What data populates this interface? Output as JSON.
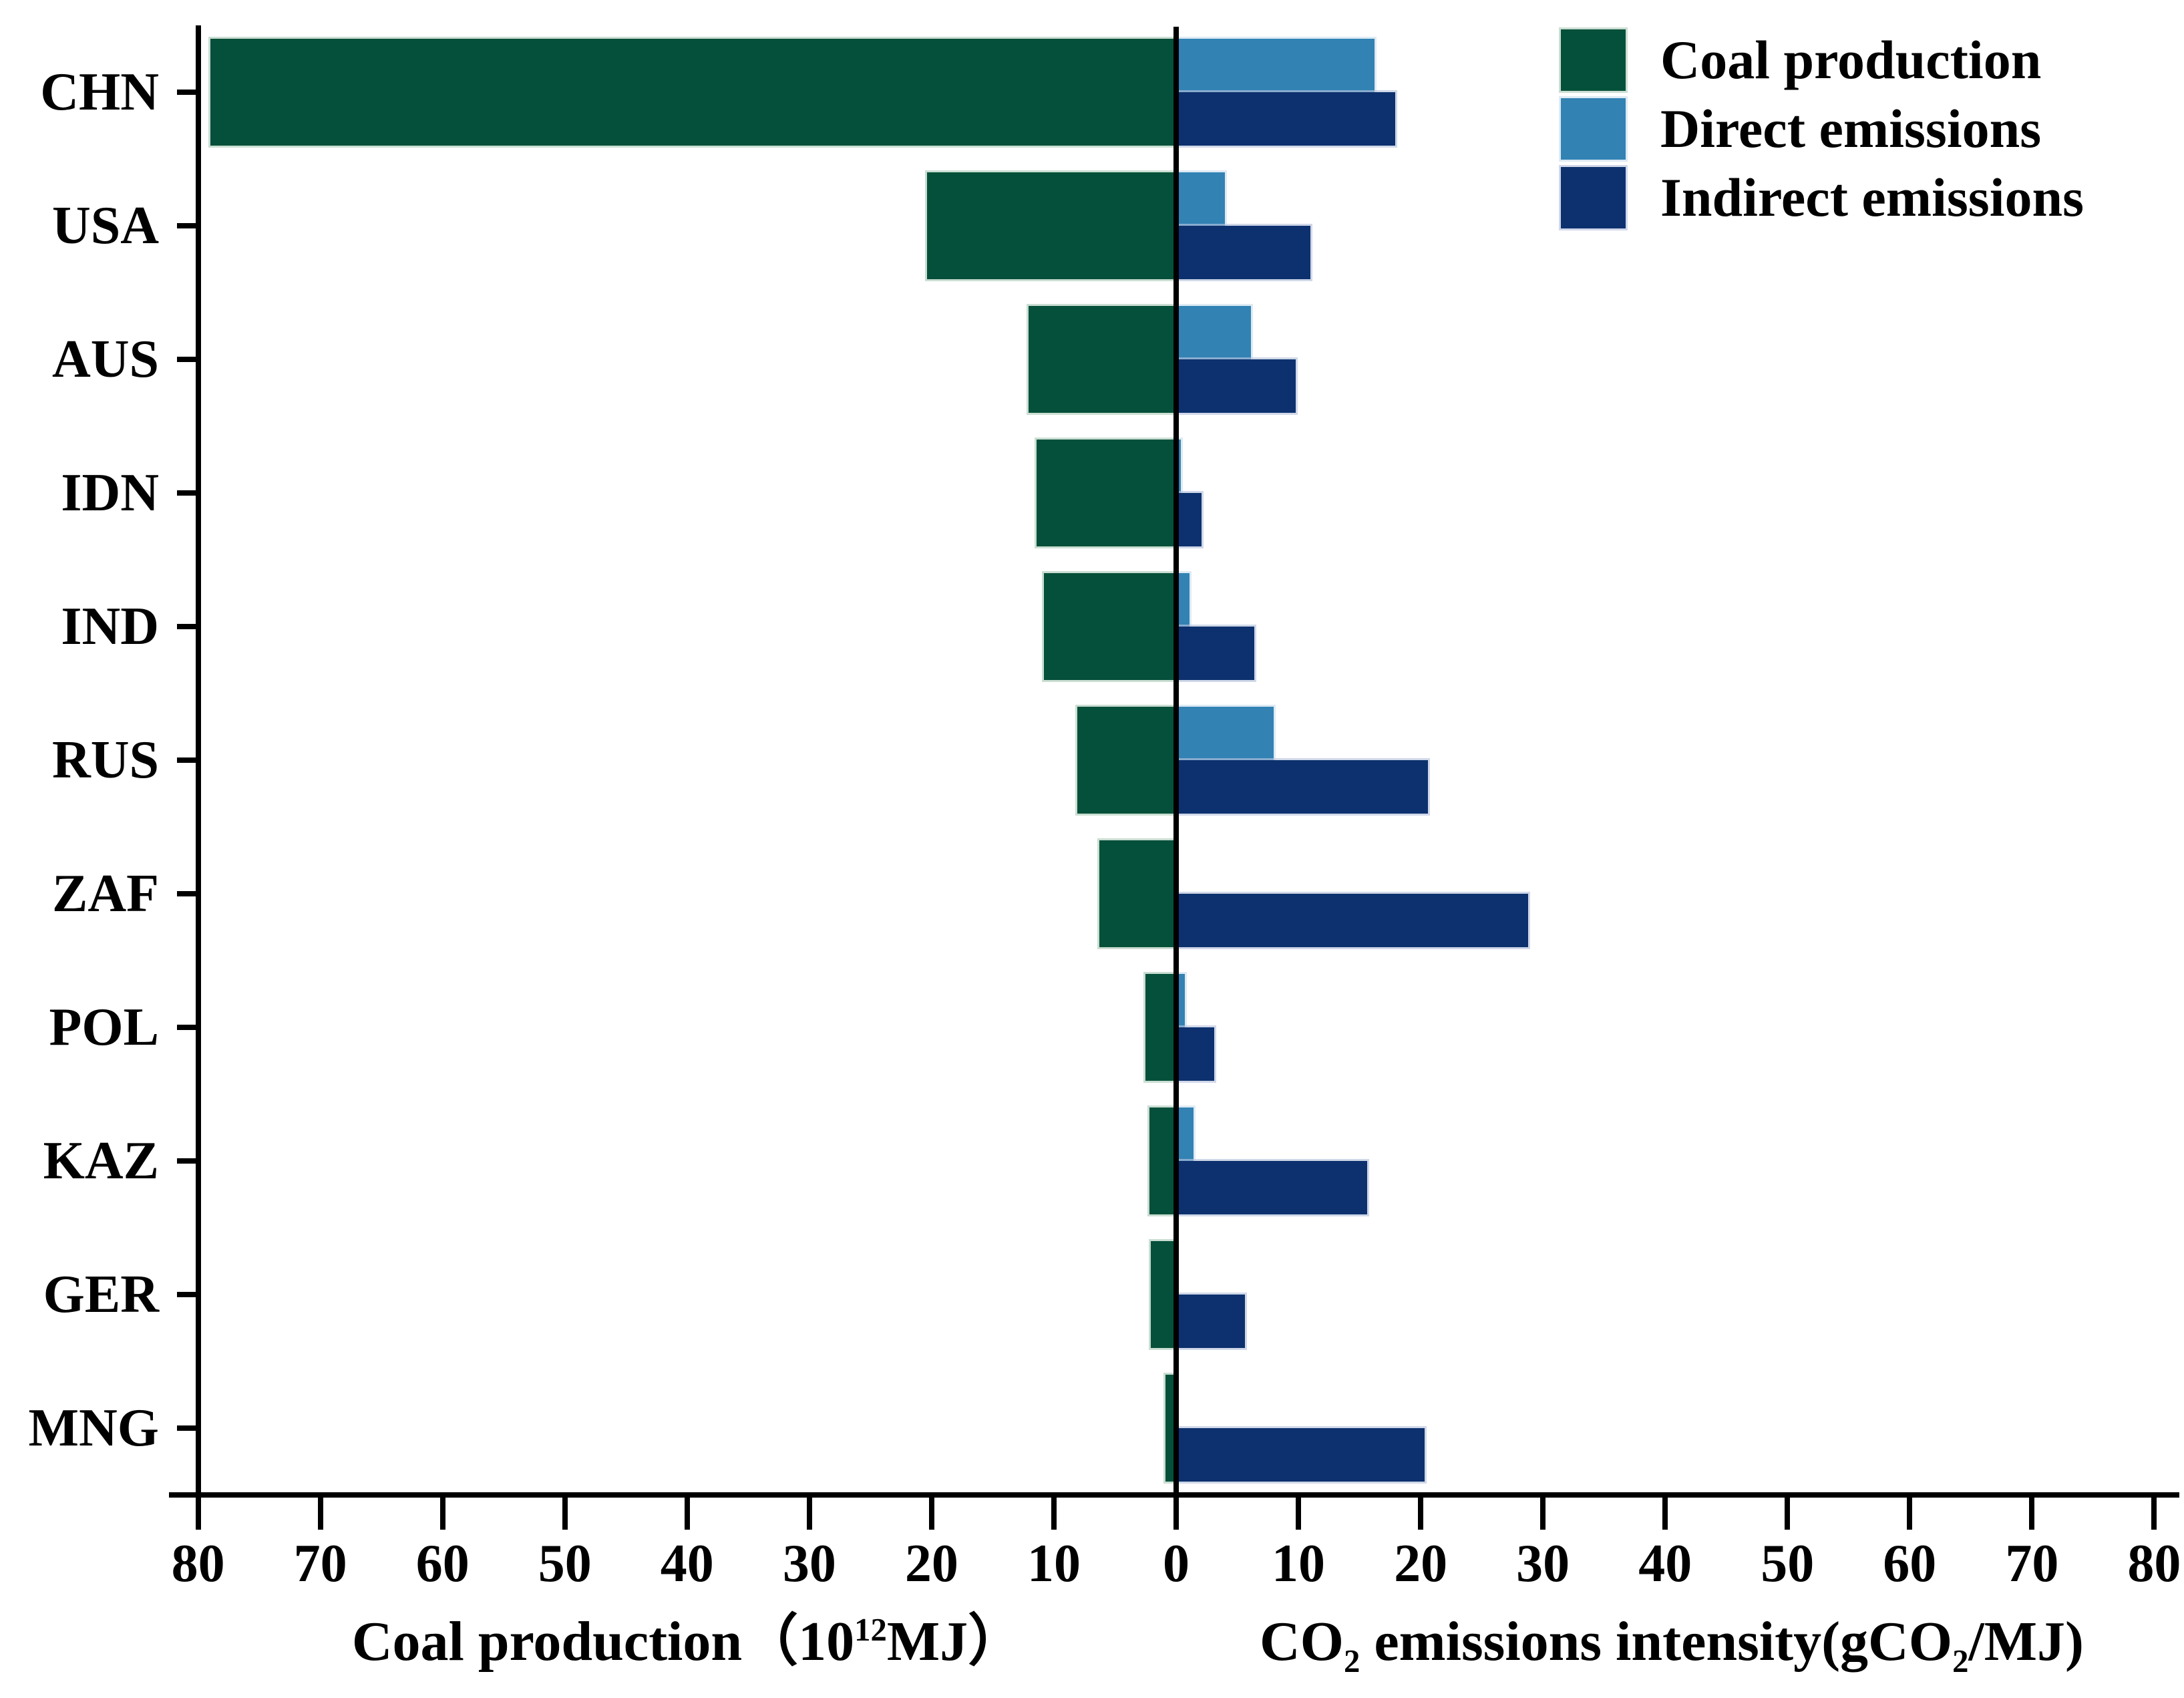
{
  "chart_data": {
    "type": "bar",
    "orientation": "horizontal-diverging",
    "title": "",
    "categories": [
      "CHN",
      "USA",
      "AUS",
      "IDN",
      "IND",
      "RUS",
      "ZAF",
      "POL",
      "KAZ",
      "GER",
      "MNG"
    ],
    "series": [
      {
        "name": "Coal production",
        "side": "left",
        "color": "#05503A",
        "edge": "rgba(160,195,175,0.55)",
        "values": [
          79.0,
          20.4,
          12.1,
          11.4,
          10.8,
          8.1,
          6.3,
          2.5,
          2.2,
          2.1,
          0.9
        ]
      },
      {
        "name": "Direct emissions",
        "side": "right",
        "color": "#3282B4",
        "edge": "rgba(205,223,238,0.65)",
        "values": [
          16.2,
          4.0,
          6.1,
          0.4,
          1.1,
          8.0,
          0,
          0.7,
          1.4,
          0,
          0
        ]
      },
      {
        "name": "Indirect emissions",
        "side": "right",
        "color": "#0D316E",
        "edge": "rgba(183,195,221,0.65)",
        "values": [
          17.9,
          11.0,
          9.8,
          2.1,
          6.4,
          20.6,
          28.8,
          3.1,
          15.6,
          5.6,
          20.3
        ]
      }
    ],
    "x_axis": {
      "left_ticks": [
        80,
        70,
        60,
        50,
        40,
        30,
        20,
        10,
        0
      ],
      "right_ticks": [
        10,
        20,
        30,
        40,
        50,
        60,
        70,
        80
      ],
      "range_per_side": [
        0,
        80
      ],
      "grid": false,
      "left_label_parts": {
        "pre": "Coal production（10",
        "sup": "12",
        "post": "MJ）"
      },
      "right_label_parts": {
        "p1": "CO",
        "sub1": "2",
        "p2": " emissions intensity(gCO",
        "sub2": "2",
        "p3": "/MJ)"
      }
    },
    "legend": {
      "position": "top-right",
      "entries": [
        "Coal production",
        "Direct emissions",
        "Indirect emissions"
      ]
    },
    "axis_color": "#000000",
    "background_color": "#ffffff"
  }
}
